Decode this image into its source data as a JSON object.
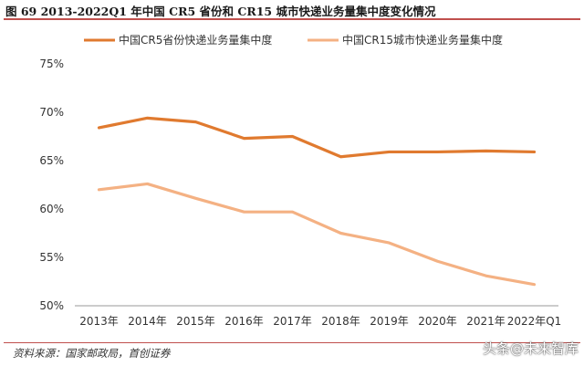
{
  "header": {
    "title": "图 69 2013-2022Q1 年中国 CR5 省份和 CR15 城市快递业务量集中度变化情况"
  },
  "footer": {
    "source": "资料来源：国家邮政局，首创证券",
    "watermark": "头条@未来智库"
  },
  "colors": {
    "series1": "#e07a2f",
    "series2": "#f4b183",
    "rule": "#c0504d"
  },
  "chart_data": {
    "type": "line",
    "categories": [
      "2013年",
      "2014年",
      "2015年",
      "2016年",
      "2017年",
      "2018年",
      "2019年",
      "2020年",
      "2021年",
      "2022年Q1"
    ],
    "series": [
      {
        "name": "中国CR5省份快递业务量集中度",
        "values": [
          68.4,
          69.4,
          69.0,
          67.3,
          67.5,
          65.4,
          65.9,
          65.9,
          66.0,
          65.9
        ]
      },
      {
        "name": "中国CR15城市快递业务量集中度",
        "values": [
          62.0,
          62.6,
          61.1,
          59.7,
          59.7,
          57.5,
          56.5,
          54.6,
          53.1,
          52.2
        ]
      }
    ],
    "ylim": [
      50,
      75
    ],
    "yticks": [
      "50%",
      "55%",
      "60%",
      "65%",
      "70%",
      "75%"
    ],
    "grid": false,
    "legend": "top"
  }
}
